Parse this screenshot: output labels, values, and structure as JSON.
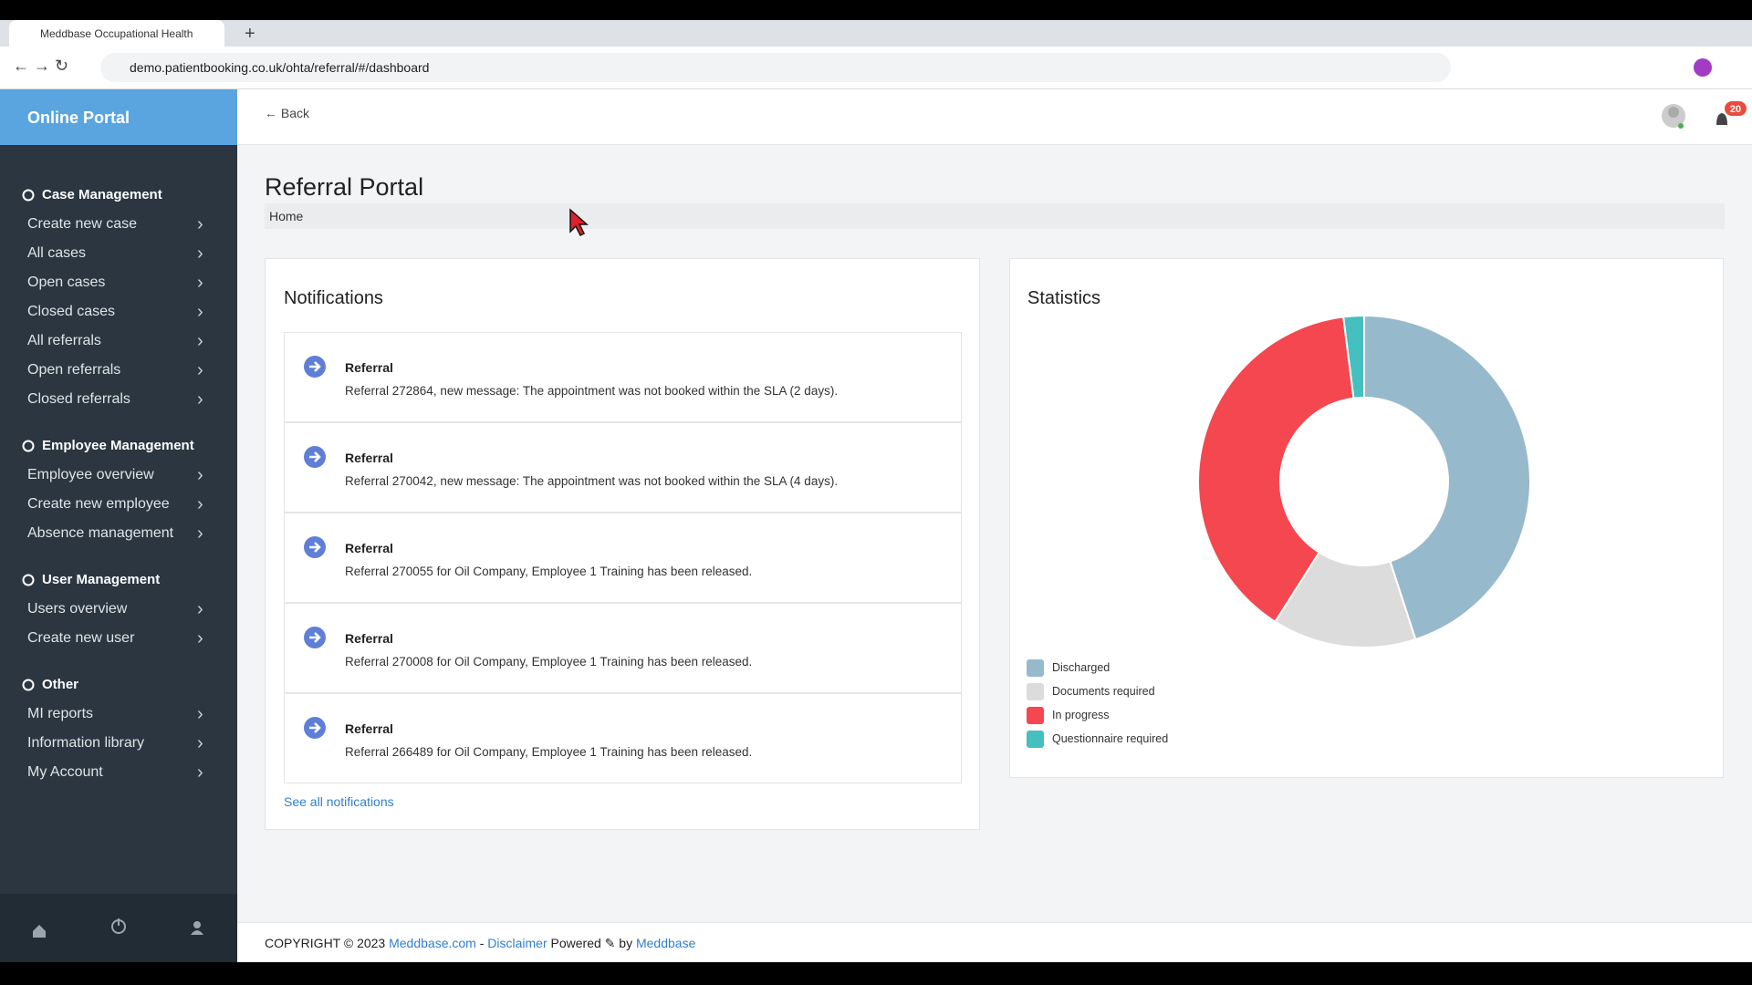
{
  "browser": {
    "tab_title": "Meddbase Occupational Health",
    "url": "demo.patientbooking.co.uk/ohta/referral/#/dashboard"
  },
  "header": {
    "brand": "Online Portal",
    "back": "Back",
    "notification_count": "20"
  },
  "sidebar": {
    "sections": [
      {
        "title": "Case Management",
        "items": [
          "Create new case",
          "All cases",
          "Open cases",
          "Closed cases",
          "All referrals",
          "Open referrals",
          "Closed referrals"
        ]
      },
      {
        "title": "Employee Management",
        "items": [
          "Employee overview",
          "Create new employee",
          "Absence management"
        ]
      },
      {
        "title": "User Management",
        "items": [
          "Users overview",
          "Create new user"
        ]
      },
      {
        "title": "Other",
        "items": [
          "MI reports",
          "Information library",
          "My Account"
        ]
      }
    ]
  },
  "page": {
    "title": "Referral Portal",
    "breadcrumb": "Home"
  },
  "notifications": {
    "title": "Notifications",
    "items": [
      {
        "heading": "Referral",
        "text": "Referral 272864, new message: The appointment was not booked within the SLA (2 days)."
      },
      {
        "heading": "Referral",
        "text": "Referral 270042, new message: The appointment was not booked within the SLA (4 days)."
      },
      {
        "heading": "Referral",
        "text": "Referral 270055 for Oil Company, Employee 1 Training has been released."
      },
      {
        "heading": "Referral",
        "text": "Referral 270008 for Oil Company, Employee 1 Training has been released."
      },
      {
        "heading": "Referral",
        "text": "Referral 266489 for Oil Company, Employee 1 Training has been released."
      }
    ],
    "link": "See all notifications"
  },
  "chart_data": {
    "type": "donut",
    "title": "Statistics",
    "categories": [
      "Discharged",
      "Documents required",
      "In progress",
      "Questionnaire required"
    ],
    "values": [
      45,
      14,
      39,
      2
    ],
    "colors": [
      "#97b9cc",
      "#dcdcdc",
      "#f5474f",
      "#45bfbf"
    ]
  },
  "footer": {
    "copyright": "COPYRIGHT © 2023",
    "site": "Meddbase.com",
    "separator": "-",
    "disclaimer": "Disclaimer",
    "powered": "Powered",
    "by": "by",
    "vendor": "Meddbase"
  }
}
